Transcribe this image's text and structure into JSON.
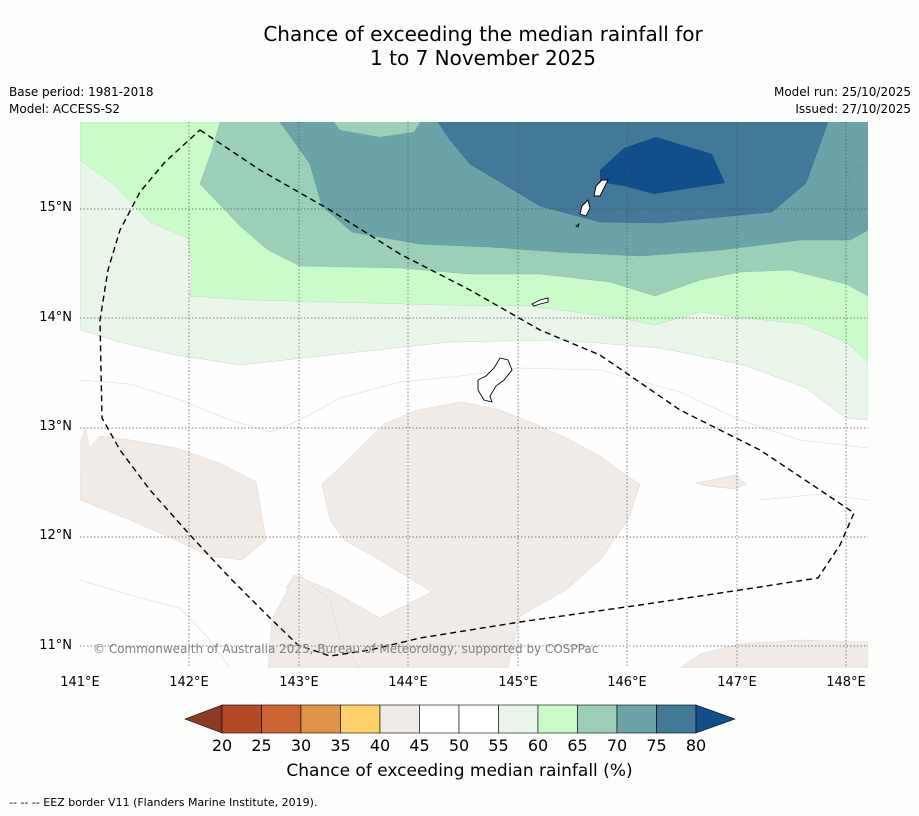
{
  "title": {
    "line1": "Chance of exceeding the median rainfall for",
    "line2": "1 to 7 November 2025"
  },
  "meta": {
    "base_period": "Base period: 1981-2018",
    "model": "Model: ACCESS-S2",
    "model_run": "Model run: 25/10/2025",
    "issued": "Issued: 27/10/2025"
  },
  "map": {
    "latitude_labels": [
      "15°N",
      "14°N",
      "13°N",
      "12°N",
      "11°N"
    ],
    "longitude_labels": [
      "141°E",
      "142°E",
      "143°E",
      "144°E",
      "145°E",
      "146°E",
      "147°E",
      "148°E"
    ],
    "copyright": "© Commonwealth of Australia 2025, Bureau of Meteorology, supported by COSPPac"
  },
  "colorbar": {
    "labels": [
      "20",
      "25",
      "30",
      "35",
      "40",
      "45",
      "50",
      "55",
      "60",
      "65",
      "70",
      "75",
      "80"
    ],
    "colors": [
      "#8c3a22",
      "#b44a28",
      "#cd6432",
      "#e19448",
      "#fdd168",
      "#f0ebe7",
      "#ffffff",
      "#ffffff",
      "#eaf5ea",
      "#c9fcc9",
      "#9bcfb8",
      "#6ba3a8",
      "#417996",
      "#124e89"
    ],
    "title": "Chance of exceeding median rainfall (%)"
  },
  "legend": {
    "eez": "--  --  -- EEZ border V11 (Flanders Marine Institute, 2019)."
  }
}
